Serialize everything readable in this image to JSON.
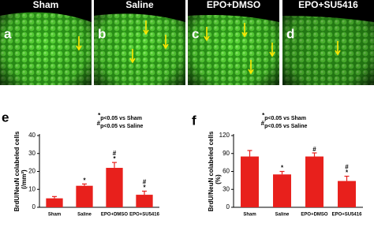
{
  "panels": [
    {
      "title": "Sham",
      "letter": "a"
    },
    {
      "title": "Saline",
      "letter": "b"
    },
    {
      "title": "EPO+DMSO",
      "letter": "c"
    },
    {
      "title": "EPO+SU5416",
      "letter": "d"
    }
  ],
  "chart_data": [
    {
      "type": "bar",
      "letter": "e",
      "y_label": [
        "BrdU/NeuN colabeled cells",
        "(/mm²)"
      ],
      "notes": [
        {
          "symbol": "*",
          "text": "p<0.05 vs Sham"
        },
        {
          "symbol": "#",
          "text": "p<0.05 vs Saline"
        }
      ],
      "categories": [
        "Sham",
        "Saline",
        "EPO+DMSO",
        "EPO+SU5416"
      ],
      "values": [
        5,
        12,
        22,
        7
      ],
      "errors": [
        1,
        1,
        3,
        2
      ],
      "annotations": [
        [],
        [
          "*"
        ],
        [
          "#",
          "*"
        ],
        [
          "#",
          "*"
        ]
      ],
      "color": "#e8201c",
      "ylim": [
        0,
        40
      ],
      "yticks": [
        0,
        10,
        20,
        30,
        40
      ]
    },
    {
      "type": "bar",
      "letter": "f",
      "y_label": [
        "BrdU/NeuN colabeled cells",
        "(%)"
      ],
      "notes": [
        {
          "symbol": "*",
          "text": "p<0.05 vs Sham"
        },
        {
          "symbol": "#",
          "text": "p<0.05 vs Saline"
        }
      ],
      "categories": [
        "Sham",
        "Saline",
        "EPO+DMSO",
        "EPO+SU5416"
      ],
      "values": [
        85,
        55,
        85,
        44
      ],
      "errors": [
        10,
        5,
        6,
        8
      ],
      "annotations": [
        [],
        [
          "*"
        ],
        [
          "#"
        ],
        [
          "#",
          "*"
        ]
      ],
      "color": "#e8201c",
      "ylim": [
        0,
        120
      ],
      "yticks": [
        0,
        30,
        60,
        90,
        120
      ]
    }
  ]
}
